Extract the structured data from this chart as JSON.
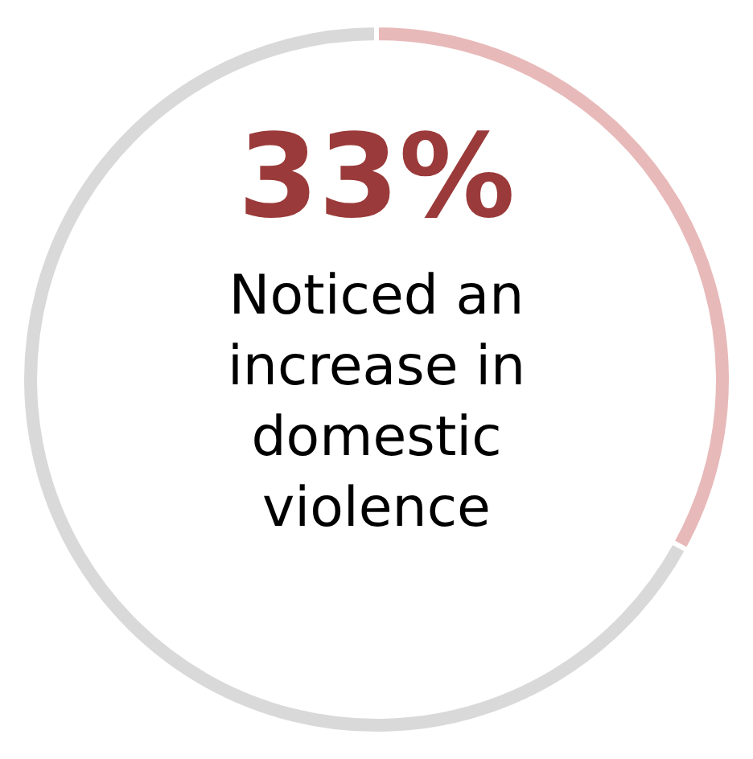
{
  "chart_data": {
    "type": "donut",
    "categories": [
      null,
      null
    ],
    "values": [
      33,
      67
    ],
    "colors": [
      "#e8b9b9",
      "#d9d9d9"
    ],
    "value_labels": [
      "33%",
      null
    ],
    "annotations": [
      "Noticed an increase in domestic violence"
    ],
    "legend": false
  }
}
